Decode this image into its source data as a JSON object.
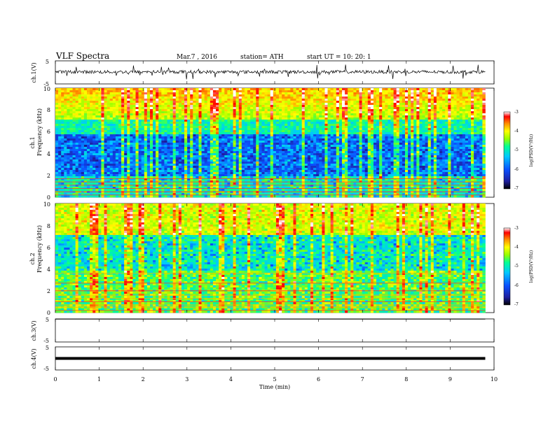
{
  "header": {
    "title": "VLF  Spectra",
    "date": "Mar.7  , 2016",
    "station": "station= ATH",
    "start_ut": "start  UT  =    10: 20: 1"
  },
  "colors": {
    "spectrogram_map": [
      "#000000",
      "#1e1ea0",
      "#0a50ff",
      "#00c8ff",
      "#00ff96",
      "#96ff00",
      "#ffff00",
      "#ff8c00",
      "#ff0000",
      "#ffffff"
    ],
    "trace": "#000000"
  },
  "chart_data": [
    {
      "type": "line",
      "name": "ch1-waveform",
      "ylabel": "ch.1(V)",
      "ylim": [
        -5,
        5
      ],
      "yticks": [
        "5",
        "-5"
      ],
      "xlim": [
        0,
        10
      ],
      "baseline_v": 0.2,
      "description_values": {
        "mean_v": 0.2,
        "peak_v": 3.5,
        "trough_v": -3.0
      }
    },
    {
      "type": "heatmap",
      "name": "ch1-spectrogram",
      "ylabel": "ch.1\nFrequency  (kHz)",
      "ylabel_channel": "ch.1",
      "ylabel_freq": "Frequency  (kHz)",
      "ylim": [
        0,
        10
      ],
      "yticks": [
        "0",
        "2",
        "4",
        "6",
        "8",
        "10"
      ],
      "xlim": [
        0,
        9.8
      ],
      "colorbar": {
        "label": "log(PSD(V²/Hz)",
        "range": [
          -7,
          -3
        ],
        "ticks": [
          "-3",
          "-4",
          "-5",
          "-6",
          "-7"
        ]
      }
    },
    {
      "type": "heatmap",
      "name": "ch2-spectrogram",
      "ylabel_channel": "ch.2",
      "ylabel_freq": "Frequency  (kHz)",
      "ylim": [
        0,
        10
      ],
      "yticks": [
        "0",
        "2",
        "4",
        "6",
        "8",
        "10"
      ],
      "xlim": [
        0,
        9.8
      ],
      "colorbar": {
        "label": "log(PSD(V²/Hz)",
        "range": [
          -7,
          -3
        ],
        "ticks": [
          "-3",
          "-4",
          "-5",
          "-6",
          "-7"
        ]
      }
    },
    {
      "type": "line",
      "name": "ch3-waveform",
      "ylabel": "ch.3(V)",
      "ylim": [
        -5,
        5
      ],
      "yticks": [
        "5",
        "-5"
      ],
      "xlim": [
        0,
        10
      ],
      "baseline_v": 4.9
    },
    {
      "type": "line",
      "name": "ch4-waveform",
      "ylabel": "ch.4(V)",
      "ylim": [
        -5,
        5
      ],
      "yticks": [
        "5",
        "-5"
      ],
      "xlim": [
        0,
        10
      ],
      "baseline_v": 0.0
    }
  ],
  "x_axis": {
    "label": "Time  (min)",
    "ticks": [
      "0",
      "1",
      "2",
      "3",
      "4",
      "5",
      "6",
      "7",
      "8",
      "9",
      "10"
    ]
  }
}
